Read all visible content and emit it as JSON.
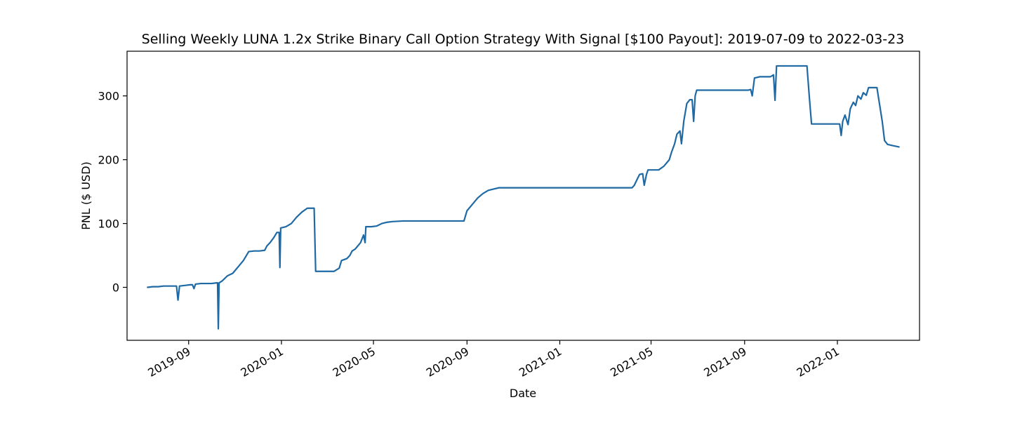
{
  "chart_data": {
    "type": "line",
    "title": "Selling Weekly LUNA 1.2x Strike Binary Call Option Strategy With Signal [$100 Payout]: 2019-07-09 to 2022-03-23",
    "xlabel": "Date",
    "ylabel": "PNL ($ USD)",
    "xlim": [
      "2019-06-12",
      "2022-04-19"
    ],
    "ylim": [
      -83,
      370
    ],
    "x_ticks": [
      "2019-09-01",
      "2020-01-01",
      "2020-05-01",
      "2020-09-01",
      "2021-01-01",
      "2021-05-01",
      "2021-09-01",
      "2022-01-01"
    ],
    "x_tick_labels": [
      "2019-09",
      "2020-01",
      "2020-05",
      "2020-09",
      "2021-01",
      "2021-05",
      "2021-09",
      "2022-01"
    ],
    "y_ticks": [
      0,
      100,
      200,
      300
    ],
    "y_tick_labels": [
      "0",
      "100",
      "200",
      "300"
    ],
    "grid": false,
    "line_color": "#1f6aa5",
    "series": [
      {
        "name": "",
        "points": [
          [
            "2019-07-09",
            0
          ],
          [
            "2019-07-16",
            1
          ],
          [
            "2019-07-23",
            1
          ],
          [
            "2019-07-30",
            2
          ],
          [
            "2019-08-06",
            2
          ],
          [
            "2019-08-13",
            2
          ],
          [
            "2019-08-16",
            2
          ],
          [
            "2019-08-18",
            -20
          ],
          [
            "2019-08-20",
            2
          ],
          [
            "2019-08-27",
            3
          ],
          [
            "2019-09-03",
            4
          ],
          [
            "2019-09-06",
            4
          ],
          [
            "2019-09-08",
            -2
          ],
          [
            "2019-09-10",
            5
          ],
          [
            "2019-09-17",
            6
          ],
          [
            "2019-09-24",
            6
          ],
          [
            "2019-10-01",
            6
          ],
          [
            "2019-10-08",
            7
          ],
          [
            "2019-10-09",
            7
          ],
          [
            "2019-10-10",
            -65
          ],
          [
            "2019-10-11",
            7
          ],
          [
            "2019-10-15",
            10
          ],
          [
            "2019-10-22",
            18
          ],
          [
            "2019-10-29",
            22
          ],
          [
            "2019-11-05",
            32
          ],
          [
            "2019-11-12",
            42
          ],
          [
            "2019-11-19",
            56
          ],
          [
            "2019-11-26",
            57
          ],
          [
            "2019-12-03",
            57
          ],
          [
            "2019-12-10",
            58
          ],
          [
            "2019-12-13",
            65
          ],
          [
            "2019-12-17",
            70
          ],
          [
            "2019-12-22",
            78
          ],
          [
            "2019-12-26",
            86
          ],
          [
            "2019-12-29",
            86
          ],
          [
            "2019-12-30",
            31
          ],
          [
            "2019-12-31",
            93
          ],
          [
            "2020-01-07",
            95
          ],
          [
            "2020-01-14",
            100
          ],
          [
            "2020-01-21",
            110
          ],
          [
            "2020-01-28",
            118
          ],
          [
            "2020-02-04",
            124
          ],
          [
            "2020-02-11",
            124
          ],
          [
            "2020-02-13",
            124
          ],
          [
            "2020-02-15",
            25
          ],
          [
            "2020-02-25",
            25
          ],
          [
            "2020-03-10",
            25
          ],
          [
            "2020-03-17",
            30
          ],
          [
            "2020-03-20",
            42
          ],
          [
            "2020-03-27",
            45
          ],
          [
            "2020-03-31",
            50
          ],
          [
            "2020-04-03",
            57
          ],
          [
            "2020-04-07",
            60
          ],
          [
            "2020-04-14",
            70
          ],
          [
            "2020-04-18",
            82
          ],
          [
            "2020-04-20",
            70
          ],
          [
            "2020-04-21",
            95
          ],
          [
            "2020-04-28",
            95
          ],
          [
            "2020-05-05",
            96
          ],
          [
            "2020-05-12",
            100
          ],
          [
            "2020-05-19",
            102
          ],
          [
            "2020-05-26",
            103
          ],
          [
            "2020-06-09",
            104
          ],
          [
            "2020-07-07",
            104
          ],
          [
            "2020-08-04",
            104
          ],
          [
            "2020-08-28",
            104
          ],
          [
            "2020-09-01",
            120
          ],
          [
            "2020-09-08",
            130
          ],
          [
            "2020-09-15",
            140
          ],
          [
            "2020-09-22",
            147
          ],
          [
            "2020-09-29",
            152
          ],
          [
            "2020-10-06",
            154
          ],
          [
            "2020-10-13",
            156
          ],
          [
            "2020-11-10",
            156
          ],
          [
            "2020-12-15",
            156
          ],
          [
            "2021-01-12",
            156
          ],
          [
            "2021-02-09",
            156
          ],
          [
            "2021-03-09",
            156
          ],
          [
            "2021-04-06",
            156
          ],
          [
            "2021-04-09",
            160
          ],
          [
            "2021-04-13",
            170
          ],
          [
            "2021-04-16",
            177
          ],
          [
            "2021-04-20",
            178
          ],
          [
            "2021-04-22",
            160
          ],
          [
            "2021-04-25",
            177
          ],
          [
            "2021-04-27",
            184
          ],
          [
            "2021-05-11",
            184
          ],
          [
            "2021-05-18",
            190
          ],
          [
            "2021-05-25",
            200
          ],
          [
            "2021-05-28",
            212
          ],
          [
            "2021-06-01",
            225
          ],
          [
            "2021-06-04",
            240
          ],
          [
            "2021-06-08",
            245
          ],
          [
            "2021-06-10",
            225
          ],
          [
            "2021-06-13",
            260
          ],
          [
            "2021-06-17",
            288
          ],
          [
            "2021-06-21",
            294
          ],
          [
            "2021-06-24",
            294
          ],
          [
            "2021-06-26",
            260
          ],
          [
            "2021-06-28",
            300
          ],
          [
            "2021-06-30",
            309
          ],
          [
            "2021-07-31",
            309
          ],
          [
            "2021-08-31",
            309
          ],
          [
            "2021-09-06",
            309
          ],
          [
            "2021-09-09",
            310
          ],
          [
            "2021-09-11",
            300
          ],
          [
            "2021-09-14",
            328
          ],
          [
            "2021-09-21",
            330
          ],
          [
            "2021-09-28",
            330
          ],
          [
            "2021-10-05",
            330
          ],
          [
            "2021-10-09",
            333
          ],
          [
            "2021-10-11",
            293
          ],
          [
            "2021-10-13",
            347
          ],
          [
            "2021-10-31",
            347
          ],
          [
            "2021-11-20",
            347
          ],
          [
            "2021-11-22",
            347
          ],
          [
            "2021-11-25",
            300
          ],
          [
            "2021-11-28",
            256
          ],
          [
            "2021-12-12",
            256
          ],
          [
            "2021-12-28",
            256
          ],
          [
            "2022-01-04",
            256
          ],
          [
            "2022-01-06",
            238
          ],
          [
            "2022-01-08",
            260
          ],
          [
            "2022-01-11",
            270
          ],
          [
            "2022-01-15",
            255
          ],
          [
            "2022-01-18",
            280
          ],
          [
            "2022-01-22",
            290
          ],
          [
            "2022-01-25",
            285
          ],
          [
            "2022-01-28",
            300
          ],
          [
            "2022-02-01",
            295
          ],
          [
            "2022-02-04",
            305
          ],
          [
            "2022-02-08",
            301
          ],
          [
            "2022-02-11",
            313
          ],
          [
            "2022-02-22",
            313
          ],
          [
            "2022-03-01",
            260
          ],
          [
            "2022-03-04",
            230
          ],
          [
            "2022-03-08",
            224
          ],
          [
            "2022-03-15",
            222
          ],
          [
            "2022-03-23",
            220
          ]
        ]
      }
    ]
  }
}
